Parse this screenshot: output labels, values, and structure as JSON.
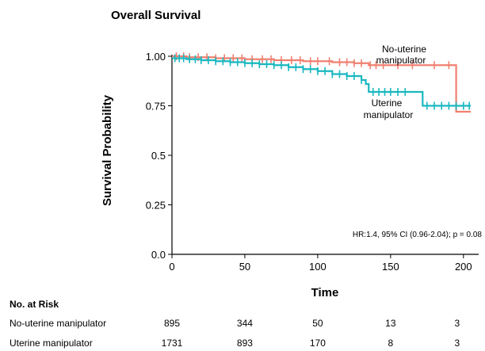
{
  "chart_data": {
    "type": "line",
    "title": "Overall Survival",
    "xlabel": "Time",
    "ylabel": "Survival Probability",
    "xlim": [
      0,
      205
    ],
    "ylim": [
      0,
      1.0
    ],
    "x_ticks": [
      "0",
      "50",
      "100",
      "150",
      "200"
    ],
    "y_ticks": [
      "0.0",
      "0.25",
      "0.5",
      "0.75",
      "1.00"
    ],
    "grid": false,
    "series": [
      {
        "name": "No-uterine manipulator",
        "label_lines": [
          "No-uterine",
          "manipulator"
        ],
        "color": "#f08070",
        "step_x": [
          0,
          10,
          30,
          50,
          70,
          90,
          110,
          125,
          135,
          195,
          205
        ],
        "step_y": [
          1.0,
          0.995,
          0.99,
          0.985,
          0.98,
          0.975,
          0.97,
          0.965,
          0.955,
          0.72,
          0.72
        ],
        "censor_x": [
          3,
          8,
          12,
          18,
          24,
          30,
          36,
          42,
          48,
          55,
          62,
          68,
          75,
          82,
          88,
          95,
          100,
          108,
          115,
          120,
          125,
          130,
          136,
          140,
          145,
          155,
          165,
          180,
          190
        ]
      },
      {
        "name": "Uterine manipulator",
        "label_lines": [
          "Uterine",
          "manipulator"
        ],
        "color": "#1ab8c0",
        "step_x": [
          0,
          10,
          20,
          30,
          40,
          50,
          60,
          70,
          80,
          90,
          100,
          110,
          120,
          130,
          133,
          135,
          170,
          172,
          205
        ],
        "step_y": [
          0.99,
          0.985,
          0.98,
          0.975,
          0.97,
          0.965,
          0.96,
          0.955,
          0.945,
          0.935,
          0.925,
          0.91,
          0.9,
          0.88,
          0.86,
          0.82,
          0.82,
          0.75,
          0.75
        ],
        "censor_x": [
          2,
          5,
          8,
          12,
          16,
          20,
          25,
          30,
          35,
          40,
          45,
          50,
          55,
          60,
          65,
          70,
          75,
          80,
          85,
          90,
          95,
          100,
          105,
          110,
          115,
          120,
          125,
          130,
          138,
          142,
          146,
          150,
          155,
          160,
          175,
          180,
          185,
          190,
          195,
          200,
          204
        ]
      }
    ],
    "annotation": "HR:1.4, 95% CI (0.96-2.04); p = 0.08",
    "risk_table": {
      "title": "No. at Risk",
      "times": [
        0,
        50,
        100,
        150,
        200
      ],
      "rows": [
        {
          "label": "No-uterine manipulator",
          "values": [
            "895",
            "344",
            "50",
            "13",
            "3"
          ]
        },
        {
          "label": "Uterine manipulator",
          "values": [
            "1731",
            "893",
            "170",
            "8",
            "3"
          ]
        }
      ]
    }
  }
}
